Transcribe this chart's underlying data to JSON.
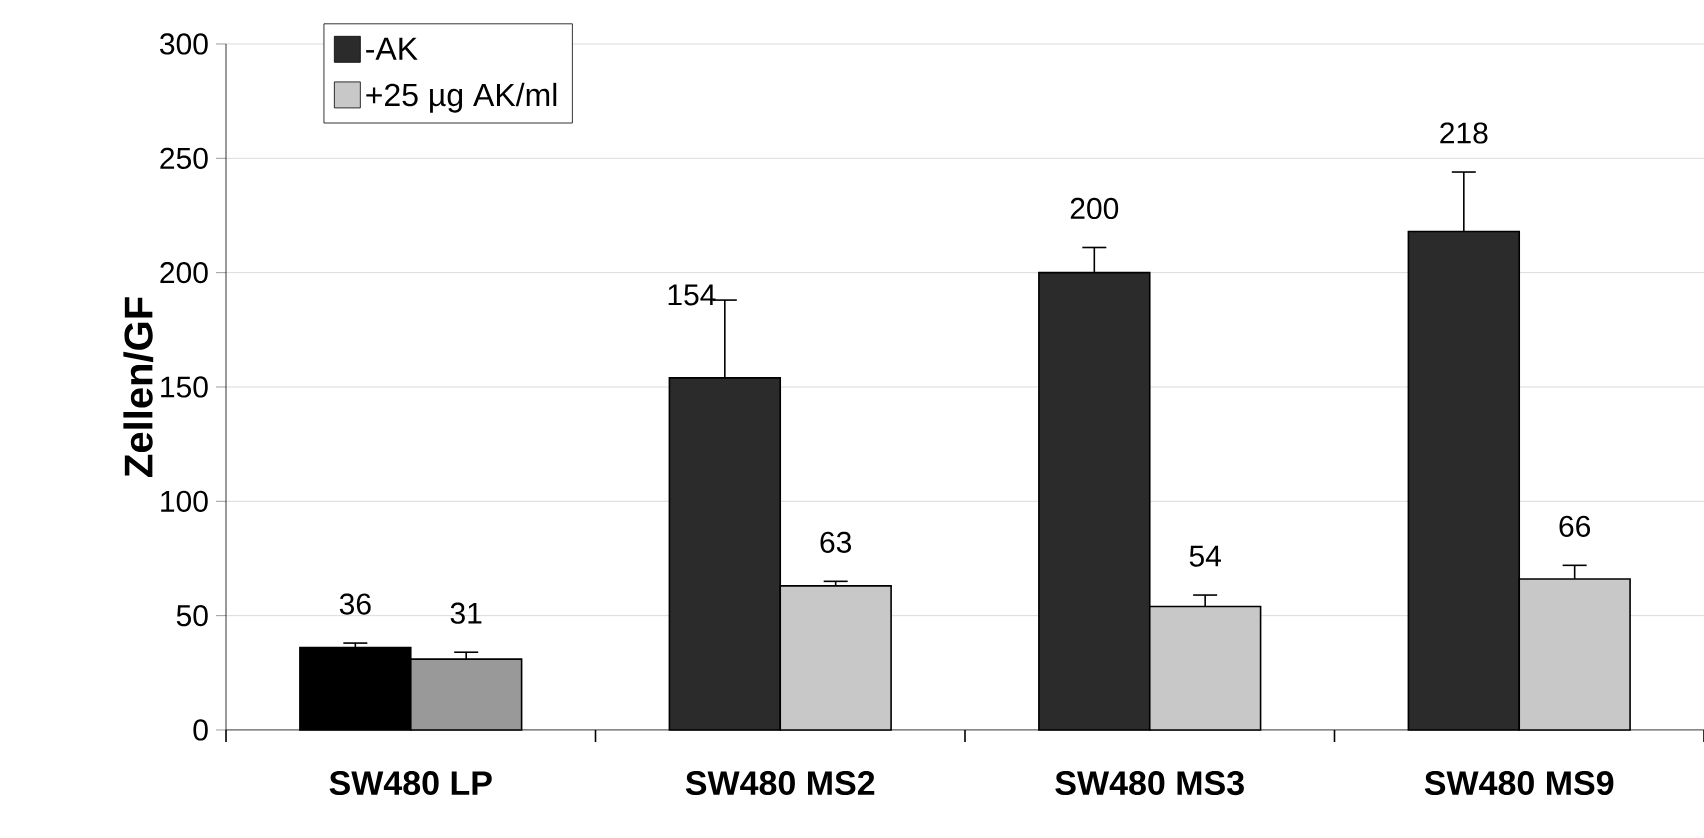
{
  "chart_data": {
    "type": "bar",
    "ylabel": "Zellen/GF",
    "categories": [
      "SW480 LP",
      "SW480 MS2",
      "SW480 MS3",
      "SW480 MS9"
    ],
    "series": [
      {
        "name": "-AK",
        "color": "#2b2b2b",
        "colors": [
          "#000000",
          "#2b2b2b",
          "#2b2b2b",
          "#2b2b2b"
        ],
        "values": [
          36,
          154,
          200,
          218
        ],
        "errors": [
          [
            36,
            38
          ],
          [
            154,
            188
          ],
          [
            200,
            211
          ],
          [
            218,
            244
          ]
        ]
      },
      {
        "name": "+25 µg AK/ml",
        "color": "#c8c8c8",
        "colors": [
          "#999999",
          "#c8c8c8",
          "#c8c8c8",
          "#c8c8c8"
        ],
        "values": [
          31,
          63,
          54,
          66
        ],
        "errors": [
          [
            31,
            34
          ],
          [
            63,
            65
          ],
          [
            54,
            59
          ],
          [
            66,
            72
          ]
        ]
      }
    ],
    "ylim": [
      0,
      300
    ],
    "yticks": [
      0,
      50,
      100,
      150,
      200,
      250,
      300
    ],
    "grid": "y",
    "legend": "top left",
    "data_labels": true
  }
}
